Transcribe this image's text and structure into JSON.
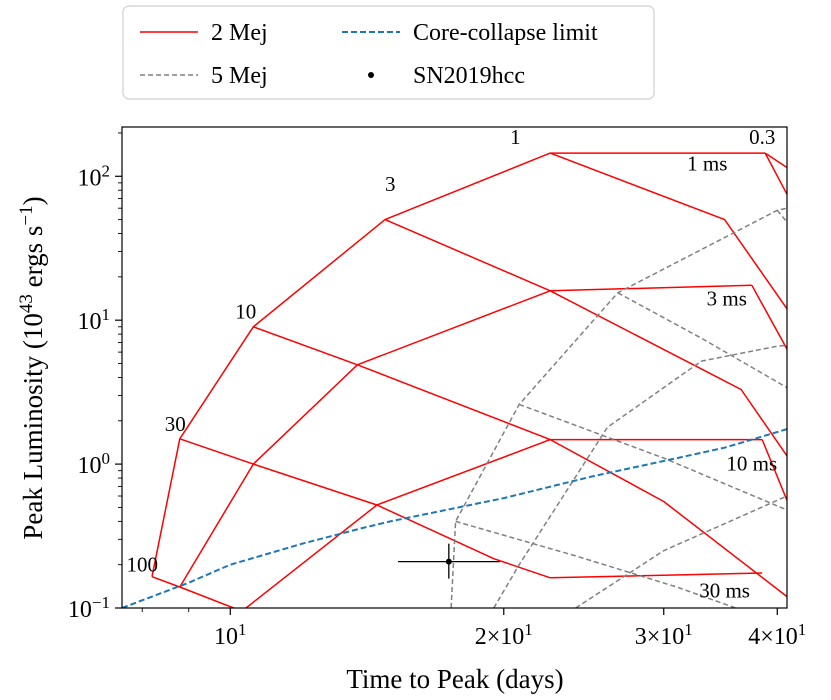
{
  "chart_data": {
    "type": "line",
    "xscale": "log",
    "yscale": "log",
    "xlim": [
      7.6,
      41
    ],
    "ylim": [
      0.1,
      220
    ],
    "xlabel": "Time to Peak (days)",
    "ylabel_main": "Peak Luminosity (10",
    "ylabel_exp": "43",
    "ylabel_units": " ergs s",
    "ylabel_exp2": "−1",
    "ylabel_close": ")",
    "x_ticks": [
      {
        "value": 10,
        "base": "10",
        "exp": "1"
      },
      {
        "value": 20,
        "base": "2×10",
        "exp": "1"
      },
      {
        "value": 30,
        "base": "3×10",
        "exp": "1"
      },
      {
        "value": 40,
        "base": "4×10",
        "exp": "1"
      }
    ],
    "y_ticks": [
      {
        "value": 0.1,
        "base": "10",
        "exp": "−1"
      },
      {
        "value": 1,
        "base": "10",
        "exp": "0"
      },
      {
        "value": 10,
        "base": "10",
        "exp": "1"
      },
      {
        "value": 100,
        "base": "10",
        "exp": "2"
      }
    ],
    "legend": {
      "placement": "top-center",
      "entries": [
        {
          "label": "2 Mej",
          "style": "solid",
          "color": "#ff0000"
        },
        {
          "label": "Core-collapse limit",
          "style": "dashed",
          "color": "#1f77b4"
        },
        {
          "label": "5 Mej",
          "style": "dashed",
          "color": "#808080"
        },
        {
          "label": "SN2019hcc",
          "style": "point",
          "color": "#000000"
        }
      ]
    },
    "series": [
      {
        "name": "2 Mej",
        "kind": "B-curve",
        "values": [
          [
            8.2,
            0.165
          ],
          [
            8.8,
            0.14
          ],
          [
            10.3,
            0.095
          ]
        ]
      },
      {
        "name": "2 Mej",
        "kind": "B-curve",
        "values": [
          [
            8.8,
            1.5
          ],
          [
            10.6,
            1.0
          ],
          [
            14.5,
            0.52
          ],
          [
            19.5,
            0.22
          ],
          [
            22.5,
            0.162
          ]
        ]
      },
      {
        "name": "2 Mej",
        "kind": "B-curve",
        "values": [
          [
            10.6,
            9.0
          ],
          [
            13.8,
            4.9
          ],
          [
            22.5,
            1.48
          ],
          [
            30,
            0.55
          ],
          [
            41,
            0.12
          ]
        ]
      },
      {
        "name": "2 Mej",
        "kind": "B-curve",
        "values": [
          [
            14.8,
            50
          ],
          [
            22.5,
            16
          ],
          [
            36.5,
            3.3
          ],
          [
            41,
            1.14
          ]
        ]
      },
      {
        "name": "2 Mej",
        "kind": "B-curve",
        "values": [
          [
            22.5,
            145
          ],
          [
            35,
            50
          ],
          [
            41,
            12
          ]
        ]
      },
      {
        "name": "2 Mej",
        "kind": "B-curve",
        "values": [
          [
            38.8,
            145
          ],
          [
            41,
            115
          ]
        ]
      },
      {
        "name": "2 Mej",
        "kind": "P-curve",
        "values": [
          [
            8.2,
            0.165
          ],
          [
            8.8,
            1.5
          ],
          [
            10.6,
            9.0
          ],
          [
            14.8,
            50
          ],
          [
            22.5,
            145
          ],
          [
            38.8,
            145
          ]
        ]
      },
      {
        "name": "2 Mej",
        "kind": "P-curve",
        "values": [
          [
            8.8,
            0.14
          ],
          [
            10.6,
            1.0
          ],
          [
            13.8,
            4.9
          ],
          [
            22.5,
            16
          ],
          [
            37.5,
            17.5
          ]
        ]
      },
      {
        "name": "2 Mej",
        "kind": "P-curve",
        "values": [
          [
            10.3,
            0.095
          ],
          [
            14.5,
            0.52
          ],
          [
            22.5,
            1.48
          ],
          [
            38.5,
            1.48
          ]
        ]
      },
      {
        "name": "2 Mej",
        "kind": "P-curve",
        "values": [
          [
            22.5,
            0.162
          ],
          [
            38.5,
            0.175
          ]
        ]
      },
      {
        "name": "2 Mej",
        "kind": "P-curve",
        "values": [
          [
            38.8,
            145
          ],
          [
            41,
            75
          ]
        ]
      },
      {
        "name": "2 Mej",
        "kind": "P-curve",
        "values": [
          [
            37.5,
            17.5
          ],
          [
            41,
            6.3
          ]
        ]
      },
      {
        "name": "2 Mej",
        "kind": "P-curve",
        "values": [
          [
            38.5,
            1.48
          ],
          [
            41,
            0.56
          ]
        ]
      },
      {
        "name": "5 Mej",
        "kind": "P-curve",
        "values": [
          [
            17.5,
            0.1
          ],
          [
            17.7,
            0.4
          ],
          [
            20.8,
            2.6
          ],
          [
            26.7,
            15.5
          ],
          [
            40,
            58
          ],
          [
            41,
            60
          ]
        ]
      },
      {
        "name": "5 Mej",
        "kind": "P-curve",
        "values": [
          [
            19.5,
            0.1
          ],
          [
            20.8,
            0.2
          ],
          [
            26,
            1.8
          ],
          [
            33,
            5.2
          ],
          [
            40,
            6.6
          ],
          [
            41,
            6.7
          ]
        ]
      },
      {
        "name": "5 Mej",
        "kind": "P-curve",
        "values": [
          [
            24,
            0.1
          ],
          [
            30,
            0.25
          ],
          [
            41,
            0.6
          ]
        ]
      },
      {
        "name": "5 Mej",
        "kind": "B-curve",
        "values": [
          [
            20.8,
            2.6
          ],
          [
            30,
            1.1
          ],
          [
            41,
            0.48
          ]
        ]
      },
      {
        "name": "5 Mej",
        "kind": "B-curve",
        "values": [
          [
            26.7,
            15.5
          ],
          [
            33,
            7.5
          ],
          [
            41,
            3.4
          ]
        ]
      },
      {
        "name": "5 Mej",
        "kind": "B-curve",
        "values": [
          [
            17.7,
            0.4
          ],
          [
            24,
            0.23
          ],
          [
            31,
            0.14
          ],
          [
            36,
            0.1
          ]
        ]
      },
      {
        "name": "5 Mej",
        "kind": "B-curve",
        "values": [
          [
            40,
            58
          ],
          [
            41,
            48
          ]
        ]
      },
      {
        "name": "Core-collapse limit",
        "kind": "limit",
        "values": [
          [
            7.6,
            0.1
          ],
          [
            9,
            0.15
          ],
          [
            10,
            0.2
          ],
          [
            12,
            0.28
          ],
          [
            14,
            0.36
          ],
          [
            15,
            0.4
          ],
          [
            20,
            0.58
          ],
          [
            25,
            0.82
          ],
          [
            30,
            1.05
          ],
          [
            35,
            1.3
          ],
          [
            41,
            1.75
          ]
        ]
      }
    ],
    "point": {
      "name": "SN2019hcc",
      "x": 17.4,
      "y": 0.21,
      "x_err": [
        15.3,
        19.8
      ],
      "y_err": [
        0.16,
        0.28
      ]
    },
    "annotations": [
      {
        "text": "1",
        "x": 20.6,
        "y": 168
      },
      {
        "text": "0.3",
        "x": 38.5,
        "y": 168
      },
      {
        "text": "1 ms",
        "x": 33.5,
        "y": 110
      },
      {
        "text": "3",
        "x": 15,
        "y": 79
      },
      {
        "text": "10",
        "x": 10.4,
        "y": 10.3
      },
      {
        "text": "30",
        "x": 8.7,
        "y": 1.7
      },
      {
        "text": "100",
        "x": 8.0,
        "y": 0.18
      },
      {
        "text": "3 ms",
        "x": 35.2,
        "y": 12.6
      },
      {
        "text": "10 ms",
        "x": 37.5,
        "y": 0.9
      },
      {
        "text": "30 ms",
        "x": 35,
        "y": 0.118
      }
    ]
  }
}
